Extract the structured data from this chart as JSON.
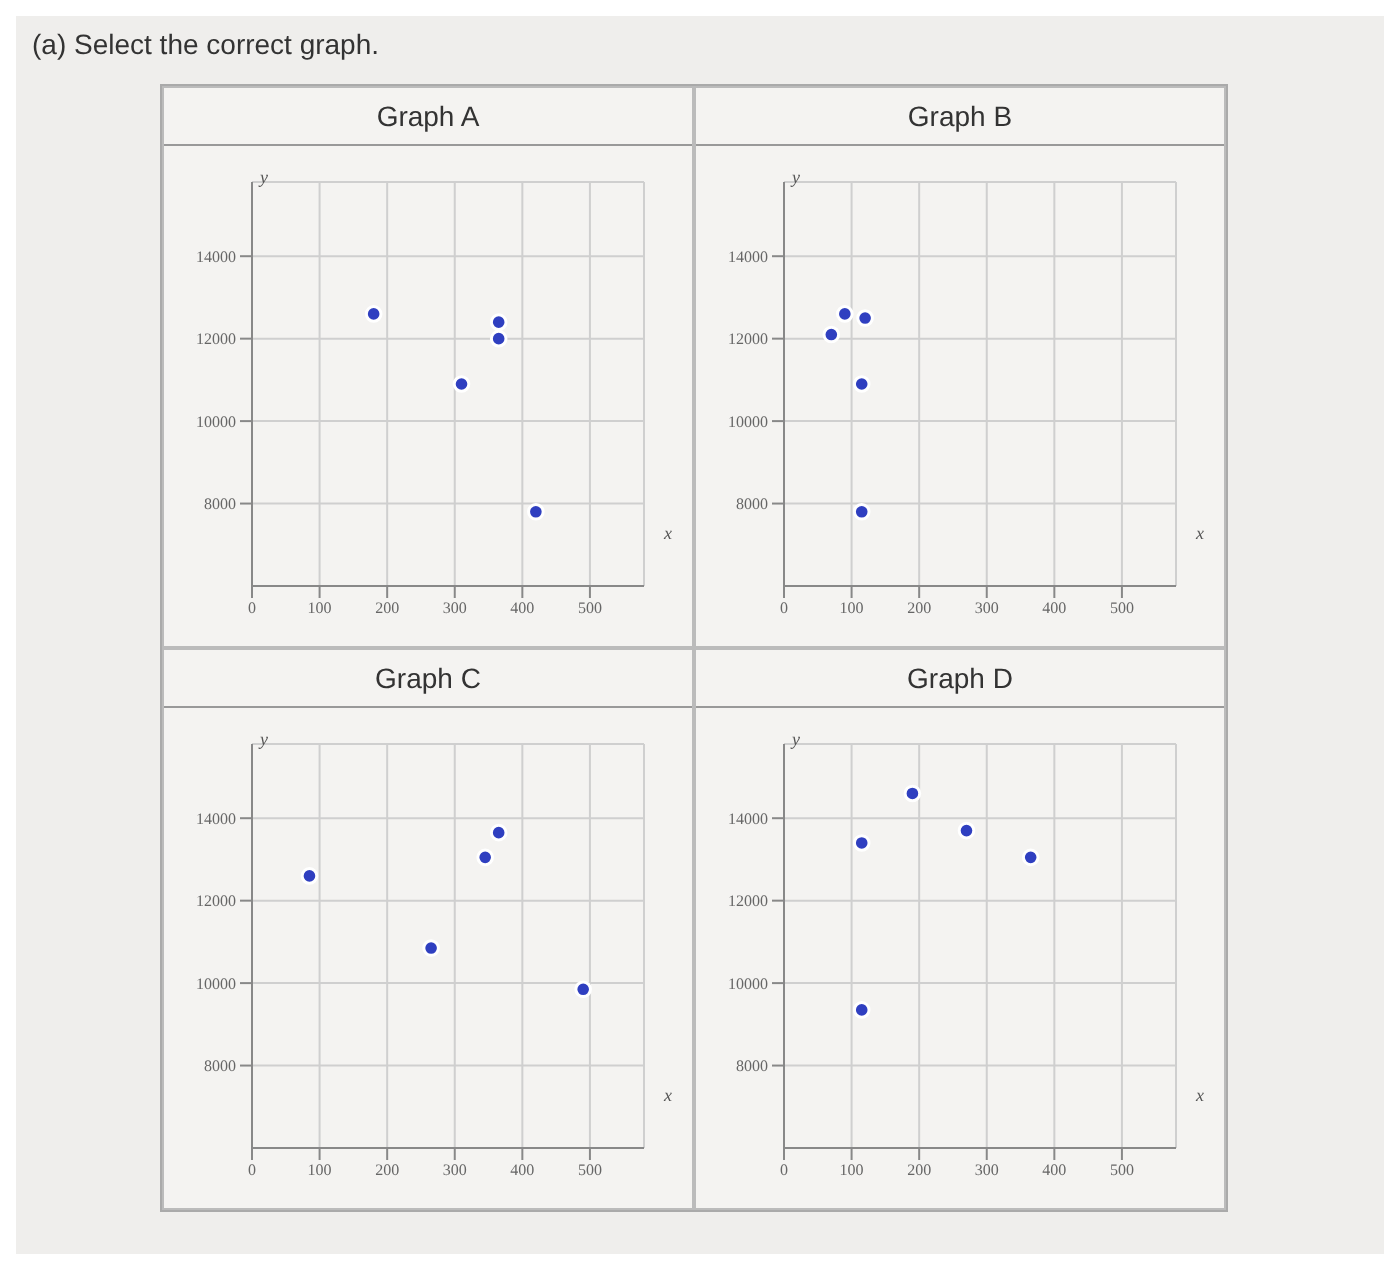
{
  "chart_data": [
    {
      "type": "scatter",
      "title": "Graph A",
      "annotations": [
        "(a) Select the correct graph."
      ],
      "xlabel": "x",
      "ylabel": "y",
      "x": [
        180,
        310,
        365,
        365,
        420
      ],
      "values": [
        12600,
        10900,
        12400,
        12000,
        7800
      ],
      "color": "#2f3fc0",
      "xlim": [
        0,
        580
      ],
      "ylim": [
        6000,
        15800
      ],
      "xticks": [
        0,
        100,
        200,
        300,
        400,
        500
      ],
      "yticks": [
        8000,
        10000,
        12000,
        14000
      ],
      "grid": true,
      "marker": "circle"
    },
    {
      "type": "scatter",
      "title": "Graph B",
      "xlabel": "x",
      "ylabel": "y",
      "x": [
        90,
        120,
        70,
        115,
        115
      ],
      "values": [
        12600,
        12500,
        12100,
        10900,
        7800
      ],
      "color": "#2f3fc0",
      "xlim": [
        0,
        580
      ],
      "ylim": [
        6000,
        15800
      ],
      "xticks": [
        0,
        100,
        200,
        300,
        400,
        500
      ],
      "yticks": [
        8000,
        10000,
        12000,
        14000
      ],
      "grid": true,
      "marker": "circle"
    },
    {
      "type": "scatter",
      "title": "Graph C",
      "xlabel": "x",
      "ylabel": "y",
      "x": [
        85,
        265,
        345,
        365,
        490
      ],
      "values": [
        12600,
        10850,
        13050,
        13650,
        9850
      ],
      "color": "#2f3fc0",
      "xlim": [
        0,
        580
      ],
      "ylim": [
        6000,
        15800
      ],
      "xticks": [
        0,
        100,
        200,
        300,
        400,
        500
      ],
      "yticks": [
        8000,
        10000,
        12000,
        14000
      ],
      "grid": true,
      "marker": "circle"
    },
    {
      "type": "scatter",
      "title": "Graph D",
      "xlabel": "x",
      "ylabel": "y",
      "x": [
        115,
        190,
        270,
        365,
        115
      ],
      "values": [
        13400,
        14600,
        13700,
        13050,
        9350
      ],
      "color": "#2f3fc0",
      "xlim": [
        0,
        580
      ],
      "ylim": [
        6000,
        15800
      ],
      "xticks": [
        0,
        100,
        200,
        300,
        400,
        500
      ],
      "yticks": [
        8000,
        10000,
        12000,
        14000
      ],
      "grid": true,
      "marker": "circle"
    }
  ]
}
